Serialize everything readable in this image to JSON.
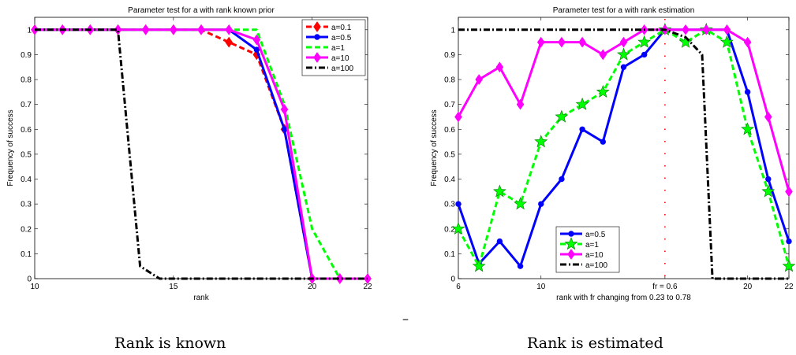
{
  "figure": {
    "separator_text": "–",
    "caption_left": "Rank is known",
    "caption_right": "Rank is estimated"
  },
  "chart_data": [
    {
      "type": "line",
      "title": "Parameter test for a with rank known prior",
      "xlabel": "rank",
      "ylabel": "Frequency of success",
      "xlim": [
        10,
        22
      ],
      "ylim": [
        0,
        1.05
      ],
      "xticks": [
        10,
        15,
        20,
        22
      ],
      "yticks": [
        0,
        0.1,
        0.2,
        0.3,
        0.4,
        0.5,
        0.6,
        0.7,
        0.8,
        0.9,
        1
      ],
      "legend_position": "top-right",
      "grid": false,
      "series": [
        {
          "name": "a=0.1",
          "color": "#ff0000",
          "dash": "dashed",
          "marker": "diamond",
          "points": [
            [
              10,
              1
            ],
            [
              11,
              1
            ],
            [
              12,
              1
            ],
            [
              13,
              1
            ],
            [
              14,
              1
            ],
            [
              15,
              1
            ],
            [
              16,
              1
            ],
            [
              17,
              0.95
            ],
            [
              18,
              0.9
            ],
            [
              19,
              0.6
            ],
            [
              20,
              0
            ],
            [
              21,
              0
            ],
            [
              22,
              0
            ]
          ]
        },
        {
          "name": "a=0.5",
          "color": "#0000ff",
          "dash": "solid",
          "marker": "dot",
          "points": [
            [
              10,
              1
            ],
            [
              11,
              1
            ],
            [
              12,
              1
            ],
            [
              13,
              1
            ],
            [
              14,
              1
            ],
            [
              15,
              1
            ],
            [
              16,
              1
            ],
            [
              17,
              1
            ],
            [
              18,
              0.92
            ],
            [
              19,
              0.6
            ],
            [
              20,
              0
            ],
            [
              21,
              0
            ],
            [
              22,
              0
            ]
          ]
        },
        {
          "name": "a=1",
          "color": "#00ff00",
          "dash": "dashed",
          "marker": "none",
          "points": [
            [
              10,
              1
            ],
            [
              11,
              1
            ],
            [
              12,
              1
            ],
            [
              13,
              1
            ],
            [
              14,
              1
            ],
            [
              15,
              1
            ],
            [
              16,
              1
            ],
            [
              17,
              1
            ],
            [
              18,
              1
            ],
            [
              19,
              0.7
            ],
            [
              20,
              0.2
            ],
            [
              21,
              0
            ],
            [
              22,
              0
            ]
          ]
        },
        {
          "name": "a=10",
          "color": "#ff00ff",
          "dash": "solid",
          "marker": "diamond",
          "points": [
            [
              10,
              1
            ],
            [
              11,
              1
            ],
            [
              12,
              1
            ],
            [
              13,
              1
            ],
            [
              14,
              1
            ],
            [
              15,
              1
            ],
            [
              16,
              1
            ],
            [
              17,
              1
            ],
            [
              18,
              0.96
            ],
            [
              19,
              0.68
            ],
            [
              20,
              0
            ],
            [
              21,
              0
            ],
            [
              22,
              0
            ]
          ]
        },
        {
          "name": "a=100",
          "color": "#000000",
          "dash": "dashdot",
          "marker": "none",
          "points": [
            [
              10,
              1
            ],
            [
              11,
              1
            ],
            [
              12,
              1
            ],
            [
              13,
              1
            ],
            [
              13.8,
              0.05
            ],
            [
              14.5,
              0
            ],
            [
              15,
              0
            ],
            [
              16,
              0
            ],
            [
              17,
              0
            ],
            [
              18,
              0
            ],
            [
              19,
              0
            ],
            [
              20,
              0
            ],
            [
              21,
              0
            ],
            [
              22,
              0
            ]
          ]
        }
      ]
    },
    {
      "type": "line",
      "title": "Parameter test for a with rank estimation",
      "xlabel": "rank with fr changing from 0.23 to 0.78",
      "ylabel": "Frequency of success",
      "xlim": [
        6,
        22
      ],
      "ylim": [
        0,
        1.05
      ],
      "xticks": [
        6,
        10,
        20,
        22
      ],
      "xtick_labels": [
        "6",
        "10",
        "20",
        "22"
      ],
      "extra_xtick": {
        "x": 16,
        "label": "fr = 0.6"
      },
      "yticks": [
        0,
        0.1,
        0.2,
        0.3,
        0.4,
        0.5,
        0.6,
        0.7,
        0.8,
        0.9,
        1
      ],
      "vertical_marker_x": 16,
      "legend_position": "bottom-left",
      "grid": false,
      "series": [
        {
          "name": "a=0.5",
          "color": "#0000ff",
          "dash": "solid",
          "marker": "dot",
          "points": [
            [
              6,
              0.3
            ],
            [
              7,
              0.06
            ],
            [
              8,
              0.15
            ],
            [
              9,
              0.05
            ],
            [
              10,
              0.3
            ],
            [
              11,
              0.4
            ],
            [
              12,
              0.6
            ],
            [
              13,
              0.55
            ],
            [
              14,
              0.85
            ],
            [
              15,
              0.9
            ],
            [
              16,
              1
            ],
            [
              17,
              1
            ],
            [
              18,
              1
            ],
            [
              19,
              1
            ],
            [
              20,
              0.75
            ],
            [
              21,
              0.4
            ],
            [
              22,
              0.15
            ]
          ]
        },
        {
          "name": "a=1",
          "color": "#00ff00",
          "dash": "dashed",
          "marker": "star",
          "points": [
            [
              6,
              0.2
            ],
            [
              7,
              0.05
            ],
            [
              8,
              0.35
            ],
            [
              9,
              0.3
            ],
            [
              10,
              0.55
            ],
            [
              11,
              0.65
            ],
            [
              12,
              0.7
            ],
            [
              13,
              0.75
            ],
            [
              14,
              0.9
            ],
            [
              15,
              0.95
            ],
            [
              16,
              1
            ],
            [
              17,
              0.95
            ],
            [
              18,
              1
            ],
            [
              19,
              0.95
            ],
            [
              20,
              0.6
            ],
            [
              21,
              0.35
            ],
            [
              22,
              0.05
            ]
          ]
        },
        {
          "name": "a=10",
          "color": "#ff00ff",
          "dash": "solid",
          "marker": "diamond",
          "points": [
            [
              6,
              0.65
            ],
            [
              7,
              0.8
            ],
            [
              8,
              0.85
            ],
            [
              9,
              0.7
            ],
            [
              10,
              0.95
            ],
            [
              11,
              0.95
            ],
            [
              12,
              0.95
            ],
            [
              13,
              0.9
            ],
            [
              14,
              0.95
            ],
            [
              15,
              1
            ],
            [
              16,
              1
            ],
            [
              17,
              1
            ],
            [
              18,
              1
            ],
            [
              19,
              1
            ],
            [
              20,
              0.95
            ],
            [
              21,
              0.65
            ],
            [
              22,
              0.35
            ]
          ]
        },
        {
          "name": "a=100",
          "color": "#000000",
          "dash": "dashdot",
          "marker": "none",
          "points": [
            [
              6,
              1
            ],
            [
              7,
              1
            ],
            [
              8,
              1
            ],
            [
              9,
              1
            ],
            [
              10,
              1
            ],
            [
              11,
              1
            ],
            [
              12,
              1
            ],
            [
              13,
              1
            ],
            [
              14,
              1
            ],
            [
              15,
              1
            ],
            [
              16,
              1
            ],
            [
              17,
              0.97
            ],
            [
              17.8,
              0.9
            ],
            [
              18.3,
              0
            ],
            [
              19,
              0
            ],
            [
              20,
              0
            ],
            [
              21,
              0
            ],
            [
              22,
              0
            ]
          ]
        }
      ]
    }
  ]
}
